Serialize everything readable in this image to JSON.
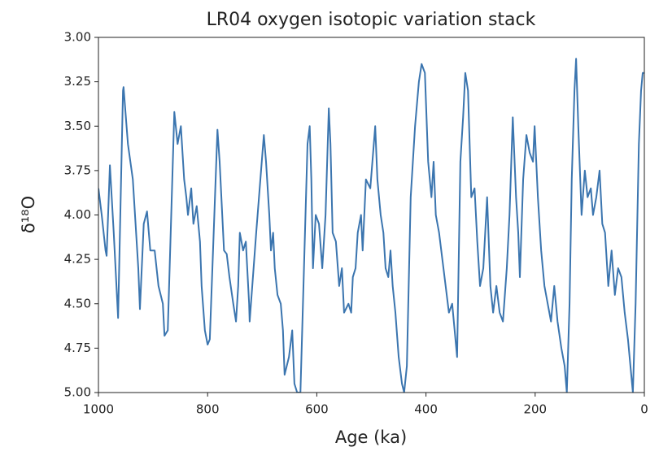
{
  "chart_data": {
    "type": "line",
    "title": "LR04 oxygen isotopic variation stack",
    "xlabel": "Age (ka)",
    "ylabel": "δ¹⁸O",
    "xlim": [
      1000,
      0
    ],
    "xticks": [
      1000,
      800,
      600,
      400,
      200,
      0
    ],
    "ylim": [
      5,
      3
    ],
    "yticks": [
      {
        "value": 3,
        "label": "3.00"
      },
      3.25,
      {
        "value": 3.5,
        "label": "3.50"
      },
      3.75,
      {
        "value": 4,
        "label": "4.00"
      },
      4.25,
      {
        "value": 4.5,
        "label": "4.50"
      },
      4.75,
      {
        "value": 5,
        "label": "5.00"
      }
    ],
    "series": [
      {
        "color": "#3b75af",
        "x": [
          1000,
          994,
          987,
          985,
          979,
          972,
          964,
          955,
          954,
          946,
          937,
          927,
          924,
          917,
          911,
          905,
          897,
          890,
          882,
          879,
          873,
          861,
          855,
          849,
          843,
          839,
          836,
          830,
          826,
          820,
          814,
          811,
          805,
          800,
          796,
          782,
          778,
          770,
          765,
          760,
          753,
          748,
          744,
          741,
          735,
          730,
          724,
          723,
          711,
          697,
          693,
          687,
          684,
          680,
          677,
          672,
          666,
          662,
          659,
          651,
          645,
          641,
          636,
          630,
          617,
          613,
          610,
          607,
          602,
          596,
          590,
          584,
          578,
          575,
          571,
          565,
          559,
          554,
          550,
          542,
          537,
          534,
          529,
          525,
          519,
          516,
          510,
          502,
          493,
          489,
          483,
          478,
          474,
          469,
          465,
          461,
          456,
          450,
          444,
          440,
          435,
          428,
          420,
          413,
          408,
          402,
          396,
          390,
          386,
          382,
          376,
          370,
          364,
          358,
          352,
          346,
          343,
          337,
          332,
          328,
          323,
          317,
          311,
          306,
          301,
          295,
          288,
          282,
          277,
          271,
          265,
          259,
          252,
          247,
          241,
          235,
          231,
          228,
          222,
          216,
          210,
          204,
          201,
          195,
          189,
          183,
          177,
          171,
          165,
          159,
          152,
          146,
          142,
          137,
          133,
          128,
          125,
          121,
          115,
          109,
          104,
          98,
          94,
          88,
          82,
          77,
          72,
          66,
          60,
          54,
          48,
          42,
          36,
          30,
          24,
          21,
          16,
          10,
          6,
          3,
          0
        ],
        "values": [
          3.85,
          4.0,
          4.2,
          4.23,
          3.72,
          4.1,
          4.58,
          3.3,
          3.28,
          3.6,
          3.8,
          4.3,
          4.53,
          4.05,
          3.98,
          4.2,
          4.2,
          4.4,
          4.5,
          4.68,
          4.65,
          3.42,
          3.6,
          3.5,
          3.8,
          3.9,
          4.0,
          3.85,
          4.05,
          3.95,
          4.15,
          4.4,
          4.65,
          4.73,
          4.7,
          3.52,
          3.7,
          4.2,
          4.22,
          4.35,
          4.5,
          4.6,
          4.4,
          4.1,
          4.2,
          4.15,
          4.5,
          4.6,
          4.1,
          3.55,
          3.7,
          4.0,
          4.2,
          4.1,
          4.3,
          4.45,
          4.5,
          4.65,
          4.9,
          4.8,
          4.65,
          4.95,
          5.0,
          5.0,
          3.6,
          3.5,
          3.8,
          4.3,
          4.0,
          4.05,
          4.3,
          4.0,
          3.4,
          3.6,
          4.1,
          4.15,
          4.4,
          4.3,
          4.55,
          4.5,
          4.55,
          4.35,
          4.3,
          4.1,
          4.0,
          4.2,
          3.8,
          3.85,
          3.5,
          3.8,
          4.0,
          4.1,
          4.3,
          4.35,
          4.2,
          4.4,
          4.55,
          4.8,
          4.95,
          5.0,
          4.85,
          3.9,
          3.5,
          3.25,
          3.15,
          3.2,
          3.7,
          3.9,
          3.7,
          4.0,
          4.1,
          4.25,
          4.4,
          4.55,
          4.5,
          4.7,
          4.8,
          3.7,
          3.45,
          3.2,
          3.3,
          3.9,
          3.85,
          4.15,
          4.4,
          4.3,
          3.9,
          4.4,
          4.55,
          4.4,
          4.55,
          4.6,
          4.3,
          4.0,
          3.45,
          3.9,
          4.1,
          4.35,
          3.8,
          3.55,
          3.65,
          3.7,
          3.5,
          3.9,
          4.2,
          4.4,
          4.5,
          4.6,
          4.4,
          4.6,
          4.75,
          4.85,
          5.0,
          4.5,
          3.8,
          3.3,
          3.12,
          3.5,
          4.0,
          3.75,
          3.9,
          3.85,
          4.0,
          3.9,
          3.75,
          4.05,
          4.1,
          4.4,
          4.2,
          4.45,
          4.3,
          4.35,
          4.55,
          4.7,
          4.9,
          5.0,
          4.5,
          3.6,
          3.3,
          3.2,
          3.2
        ]
      }
    ]
  }
}
